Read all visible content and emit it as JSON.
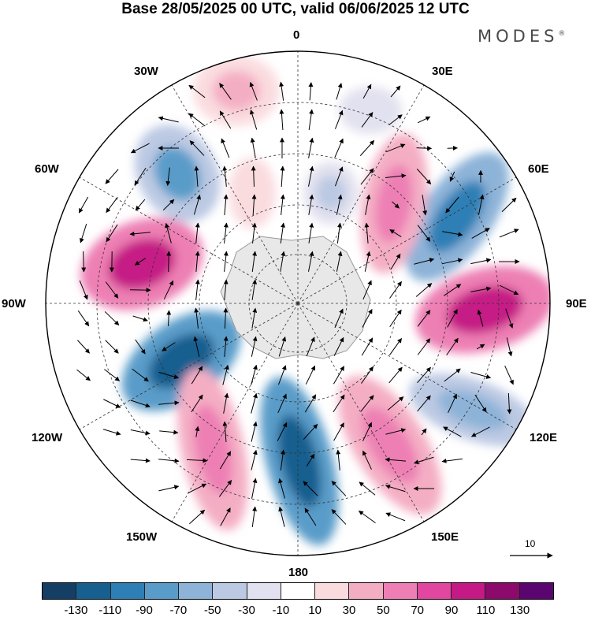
{
  "title": "Base 28/05/2025 00 UTC, valid 06/06/2025 12 UTC",
  "brand": "MODES",
  "brand_mark": "®",
  "longitude_labels": {
    "deg0": "0",
    "deg30e": "30E",
    "deg60e": "60E",
    "deg90e": "90E",
    "deg120e": "120E",
    "deg150e": "150E",
    "deg180": "180",
    "deg150w": "150W",
    "deg120w": "120W",
    "deg90w": "90W",
    "deg60w": "60W",
    "deg30w": "30W"
  },
  "reference_vector": {
    "label": "10"
  },
  "colorbar": {
    "colors": [
      "#143e63",
      "#175f8f",
      "#2e7fb5",
      "#5a9cc9",
      "#8db3d8",
      "#bcc9e3",
      "#e2e1ef",
      "#ffffff",
      "#fadcdf",
      "#f4aec4",
      "#ed7fb4",
      "#e2479f",
      "#c51a85",
      "#8b0a6b",
      "#5b0570"
    ],
    "ticks": [
      "-130",
      "-110",
      "-90",
      "-70",
      "-50",
      "-30",
      "-10",
      "10",
      "30",
      "50",
      "70",
      "90",
      "110",
      "130"
    ]
  },
  "land_color": "#e8e8e8"
}
